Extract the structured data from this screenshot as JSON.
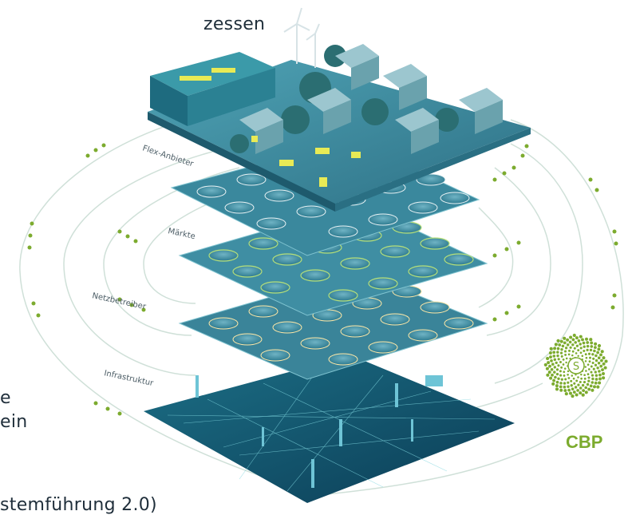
{
  "text_fragments": {
    "top_right": "zessen",
    "left_1": "e",
    "left_2": "ein",
    "bottom": "stemführung 2.0)"
  },
  "layers": [
    {
      "label": "Flex-Anbieter",
      "icon": "appliance-icons"
    },
    {
      "label": "Märkte",
      "icon": "euro-icons"
    },
    {
      "label": "Netzbetreiber",
      "icon": "pylon-icons"
    },
    {
      "label": "Infrastruktur",
      "icon": "grid-network"
    }
  ],
  "hub": {
    "label": "CBP",
    "symbol": "S"
  },
  "colors": {
    "layer_top": "#3f8ea3",
    "layer_mid": "#3a8499",
    "layer_dark": "#0f4c66",
    "accent_green": "#7cab2e",
    "text_dark": "#1f2e3a"
  }
}
